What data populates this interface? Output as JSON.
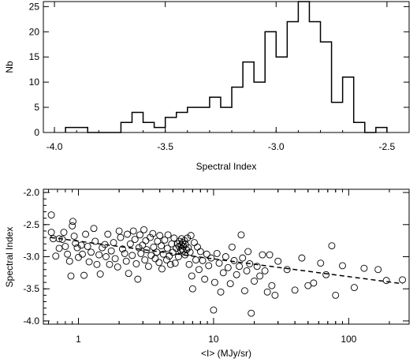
{
  "chart_data": [
    {
      "type": "histogram",
      "xlabel": "Spectral Index",
      "ylabel": "Nb",
      "xlim": [
        -4.05,
        -2.4
      ],
      "ylim": [
        0,
        26
      ],
      "xticks": [
        -4.0,
        -3.5,
        -3.0,
        -2.5
      ],
      "xtick_labels": [
        "-4.0",
        "-3.5",
        "-3.0",
        "-2.5"
      ],
      "yticks": [
        0,
        5,
        10,
        15,
        20,
        25
      ],
      "ytick_labels": [
        "0",
        "5",
        "10",
        "15",
        "20",
        "25"
      ],
      "bin_width": 0.05,
      "bins": [
        {
          "x0": -3.95,
          "x1": -3.85,
          "count": 1
        },
        {
          "x0": -3.85,
          "x1": -3.7,
          "count": 0
        },
        {
          "x0": -3.7,
          "x1": -3.65,
          "count": 2
        },
        {
          "x0": -3.65,
          "x1": -3.6,
          "count": 4
        },
        {
          "x0": -3.6,
          "x1": -3.55,
          "count": 2
        },
        {
          "x0": -3.55,
          "x1": -3.5,
          "count": 1
        },
        {
          "x0": -3.5,
          "x1": -3.45,
          "count": 3
        },
        {
          "x0": -3.45,
          "x1": -3.4,
          "count": 4
        },
        {
          "x0": -3.4,
          "x1": -3.3,
          "count": 5
        },
        {
          "x0": -3.3,
          "x1": -3.25,
          "count": 7
        },
        {
          "x0": -3.25,
          "x1": -3.2,
          "count": 5
        },
        {
          "x0": -3.2,
          "x1": -3.15,
          "count": 9
        },
        {
          "x0": -3.15,
          "x1": -3.1,
          "count": 14
        },
        {
          "x0": -3.1,
          "x1": -3.05,
          "count": 10
        },
        {
          "x0": -3.05,
          "x1": -3.0,
          "count": 20
        },
        {
          "x0": -3.0,
          "x1": -2.95,
          "count": 15
        },
        {
          "x0": -2.95,
          "x1": -2.9,
          "count": 22
        },
        {
          "x0": -2.9,
          "x1": -2.85,
          "count": 26
        },
        {
          "x0": -2.85,
          "x1": -2.8,
          "count": 22
        },
        {
          "x0": -2.8,
          "x1": -2.75,
          "count": 18
        },
        {
          "x0": -2.75,
          "x1": -2.7,
          "count": 6
        },
        {
          "x0": -2.7,
          "x1": -2.65,
          "count": 11
        },
        {
          "x0": -2.65,
          "x1": -2.6,
          "count": 2
        },
        {
          "x0": -2.6,
          "x1": -2.55,
          "count": 0
        },
        {
          "x0": -2.55,
          "x1": -2.5,
          "count": 1
        }
      ]
    },
    {
      "type": "scatter",
      "xlabel": "<I> (MJy/sr)",
      "ylabel": "Spectral Index",
      "xscale": "log",
      "xlim": [
        0.55,
        280
      ],
      "ylim": [
        -4.05,
        -1.95
      ],
      "xticks": [
        1,
        10,
        100
      ],
      "xtick_labels": [
        "1",
        "10",
        "100"
      ],
      "yticks": [
        -4.0,
        -3.5,
        -3.0,
        -2.5,
        -2.0
      ],
      "ytick_labels": [
        "-4.0",
        "-3.5",
        "-3.0",
        "-2.5",
        "-2.0"
      ],
      "fit_line": {
        "style": "dashed",
        "x": [
          0.62,
          250
        ],
        "y": [
          -2.7,
          -3.42
        ]
      },
      "points": [
        [
          0.63,
          -2.35
        ],
        [
          0.63,
          -2.62
        ],
        [
          0.65,
          -2.72
        ],
        [
          0.68,
          -2.99
        ],
        [
          0.72,
          -2.72
        ],
        [
          0.72,
          -2.87
        ],
        [
          0.76,
          -2.73
        ],
        [
          0.78,
          -2.62
        ],
        [
          0.8,
          -2.84
        ],
        [
          0.83,
          -2.96
        ],
        [
          0.86,
          -3.07
        ],
        [
          0.88,
          -3.3
        ],
        [
          0.9,
          -2.52
        ],
        [
          0.91,
          -2.45
        ],
        [
          0.93,
          -2.68
        ],
        [
          0.95,
          -2.79
        ],
        [
          0.98,
          -2.86
        ],
        [
          1.0,
          -3.01
        ],
        [
          1.05,
          -2.82
        ],
        [
          1.07,
          -2.96
        ],
        [
          1.1,
          -3.29
        ],
        [
          1.13,
          -2.65
        ],
        [
          1.17,
          -2.84
        ],
        [
          1.2,
          -3.08
        ],
        [
          1.24,
          -2.93
        ],
        [
          1.3,
          -2.56
        ],
        [
          1.33,
          -2.76
        ],
        [
          1.37,
          -3.12
        ],
        [
          1.42,
          -2.97
        ],
        [
          1.45,
          -3.27
        ],
        [
          1.5,
          -2.86
        ],
        [
          1.57,
          -2.81
        ],
        [
          1.6,
          -3.0
        ],
        [
          1.65,
          -2.65
        ],
        [
          1.7,
          -3.12
        ],
        [
          1.75,
          -2.91
        ],
        [
          1.82,
          -2.78
        ],
        [
          1.87,
          -3.03
        ],
        [
          1.95,
          -3.16
        ],
        [
          2.0,
          -2.6
        ],
        [
          2.05,
          -2.7
        ],
        [
          2.12,
          -2.88
        ],
        [
          2.2,
          -2.95
        ],
        [
          2.26,
          -3.07
        ],
        [
          2.3,
          -2.65
        ],
        [
          2.35,
          -3.26
        ],
        [
          2.42,
          -2.8
        ],
        [
          2.5,
          -2.98
        ],
        [
          2.55,
          -2.6
        ],
        [
          2.62,
          -2.73
        ],
        [
          2.68,
          -3.11
        ],
        [
          2.75,
          -3.35
        ],
        [
          2.8,
          -2.86
        ],
        [
          2.85,
          -2.66
        ],
        [
          2.9,
          -2.95
        ],
        [
          2.98,
          -2.82
        ],
        [
          3.05,
          -2.58
        ],
        [
          3.1,
          -3.05
        ],
        [
          3.15,
          -2.75
        ],
        [
          3.2,
          -2.89
        ],
        [
          3.3,
          -3.15
        ],
        [
          3.4,
          -2.7
        ],
        [
          3.45,
          -2.98
        ],
        [
          3.55,
          -2.64
        ],
        [
          3.6,
          -2.85
        ],
        [
          3.7,
          -3.03
        ],
        [
          3.8,
          -2.93
        ],
        [
          3.85,
          -2.76
        ],
        [
          3.95,
          -3.09
        ],
        [
          4.0,
          -2.67
        ],
        [
          4.1,
          -2.83
        ],
        [
          4.15,
          -3.19
        ],
        [
          4.25,
          -2.96
        ],
        [
          4.35,
          -2.74
        ],
        [
          4.5,
          -3.05
        ],
        [
          4.55,
          -2.87
        ],
        [
          4.6,
          -2.66
        ],
        [
          4.7,
          -2.99
        ],
        [
          4.8,
          -3.12
        ],
        [
          4.9,
          -2.8
        ],
        [
          5.0,
          -2.93
        ],
        [
          5.1,
          -2.71
        ],
        [
          5.2,
          -3.1
        ],
        [
          5.3,
          -2.87
        ],
        [
          5.4,
          -2.8
        ],
        [
          5.5,
          -3.0
        ],
        [
          5.55,
          -2.84
        ],
        [
          5.6,
          -2.76
        ],
        [
          5.7,
          -2.9
        ],
        [
          5.75,
          -2.82
        ],
        [
          5.8,
          -2.72
        ],
        [
          5.85,
          -2.88
        ],
        [
          5.9,
          -2.78
        ],
        [
          5.95,
          -2.91
        ],
        [
          6.0,
          -2.84
        ],
        [
          6.1,
          -2.75
        ],
        [
          6.15,
          -2.97
        ],
        [
          6.2,
          -2.81
        ],
        [
          6.3,
          -2.89
        ],
        [
          6.4,
          -2.71
        ],
        [
          6.5,
          -2.86
        ],
        [
          6.6,
          -3.12
        ],
        [
          6.7,
          -2.93
        ],
        [
          6.8,
          -2.67
        ],
        [
          6.9,
          -3.3
        ],
        [
          7.0,
          -3.5
        ],
        [
          7.2,
          -2.78
        ],
        [
          7.4,
          -3.05
        ],
        [
          7.6,
          -2.85
        ],
        [
          7.8,
          -3.2
        ],
        [
          8.0,
          -2.92
        ],
        [
          8.3,
          -3.06
        ],
        [
          8.6,
          -3.35
        ],
        [
          8.9,
          -2.96
        ],
        [
          9.2,
          -3.14
        ],
        [
          9.6,
          -3.02
        ],
        [
          10.0,
          -3.83
        ],
        [
          10.2,
          -3.4
        ],
        [
          10.6,
          -2.95
        ],
        [
          11.0,
          -3.1
        ],
        [
          11.3,
          -3.55
        ],
        [
          11.8,
          -3.25
        ],
        [
          12.3,
          -3.0
        ],
        [
          12.8,
          -3.17
        ],
        [
          13.3,
          -3.42
        ],
        [
          13.7,
          -2.85
        ],
        [
          14.2,
          -3.06
        ],
        [
          14.8,
          -3.28
        ],
        [
          15.5,
          -3.15
        ],
        [
          16.0,
          -2.66
        ],
        [
          16.4,
          -3.02
        ],
        [
          17.0,
          -3.53
        ],
        [
          17.6,
          -3.22
        ],
        [
          18.0,
          -2.92
        ],
        [
          18.5,
          -3.11
        ],
        [
          19.0,
          -3.88
        ],
        [
          20.0,
          -3.38
        ],
        [
          21.0,
          -3.15
        ],
        [
          22.0,
          -3.3
        ],
        [
          23.0,
          -2.97
        ],
        [
          24.0,
          -3.22
        ],
        [
          25.0,
          -3.55
        ],
        [
          26.0,
          -2.97
        ],
        [
          27.0,
          -3.45
        ],
        [
          28.5,
          -3.6
        ],
        [
          30.0,
          -3.07
        ],
        [
          35.0,
          -3.2
        ],
        [
          40.0,
          -3.52
        ],
        [
          45.0,
          -3.02
        ],
        [
          50.0,
          -3.45
        ],
        [
          55.0,
          -3.41
        ],
        [
          62.0,
          -3.1
        ],
        [
          68.0,
          -3.28
        ],
        [
          75.0,
          -2.83
        ],
        [
          80.0,
          -3.6
        ],
        [
          90.0,
          -3.14
        ],
        [
          110.0,
          -3.48
        ],
        [
          130.0,
          -3.18
        ],
        [
          165.0,
          -3.2
        ],
        [
          190.0,
          -3.37
        ],
        [
          250.0,
          -3.36
        ]
      ]
    }
  ]
}
